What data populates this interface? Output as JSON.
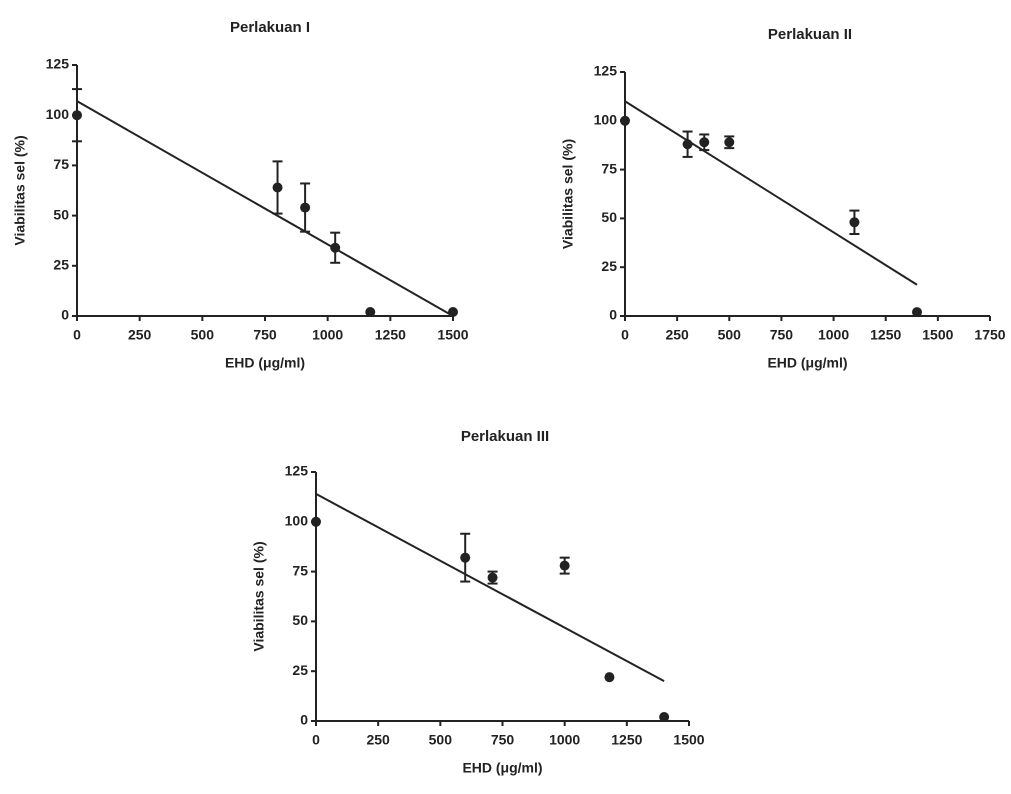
{
  "chart_data": [
    {
      "type": "scatter",
      "title": "Perlakuan I",
      "xlabel": "EHD (μg/ml)",
      "ylabel": "Viabilitas sel (%)",
      "xlim": [
        0,
        1500
      ],
      "ylim": [
        0,
        125
      ],
      "xticks": [
        0,
        250,
        500,
        750,
        1000,
        1250,
        1500
      ],
      "yticks": [
        0,
        25,
        50,
        75,
        100,
        125
      ],
      "color": "#222222",
      "x": [
        0,
        800,
        910,
        1030,
        1170,
        1500
      ],
      "values": [
        100,
        64,
        54,
        34,
        2,
        2
      ],
      "errors": [
        13,
        13,
        12,
        7.5,
        0,
        0
      ],
      "fit": {
        "x": [
          0,
          1500
        ],
        "values": [
          107,
          0
        ]
      }
    },
    {
      "type": "scatter",
      "title": "Perlakuan II",
      "xlabel": "EHD (μg/ml)",
      "ylabel": "Viabilitas sel (%)",
      "xlim": [
        0,
        1750
      ],
      "ylim": [
        0,
        125
      ],
      "xticks": [
        0,
        250,
        500,
        750,
        1000,
        1250,
        1500,
        1750
      ],
      "yticks": [
        0,
        25,
        50,
        75,
        100,
        125
      ],
      "color": "#222222",
      "x": [
        0,
        300,
        380,
        500,
        1100,
        1400
      ],
      "values": [
        100,
        88,
        89,
        89,
        48,
        2
      ],
      "errors": [
        0,
        6.5,
        4,
        3,
        6,
        0
      ],
      "fit": {
        "x": [
          0,
          1400
        ],
        "values": [
          110,
          16
        ]
      }
    },
    {
      "type": "scatter",
      "title": "Perlakuan III",
      "xlabel": "EHD (μg/ml)",
      "ylabel": "Viabilitas sel (%)",
      "xlim": [
        0,
        1500
      ],
      "ylim": [
        0,
        125
      ],
      "xticks": [
        0,
        250,
        500,
        750,
        1000,
        1250,
        1500
      ],
      "yticks": [
        0,
        25,
        50,
        75,
        100,
        125
      ],
      "color": "#222222",
      "x": [
        0,
        600,
        710,
        1000,
        1180,
        1400
      ],
      "values": [
        100,
        82,
        72,
        78,
        22,
        2
      ],
      "errors": [
        0,
        12,
        3,
        4,
        0,
        0
      ],
      "fit": {
        "x": [
          0,
          1400
        ],
        "values": [
          114,
          20
        ]
      }
    }
  ]
}
